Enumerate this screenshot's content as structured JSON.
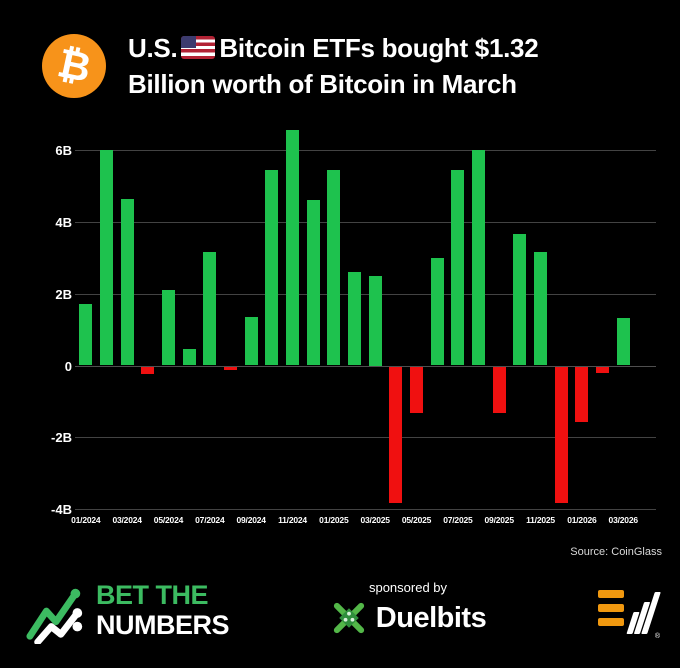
{
  "header": {
    "title_prefix": "U.S.",
    "title_suffix": "Bitcoin ETFs bought $1.32",
    "title_line2": "Billion worth of Bitcoin in March",
    "logo": "bitcoin-icon",
    "flag": "us-flag-icon",
    "accent_orange": "#f7931a"
  },
  "chart_data": {
    "type": "bar",
    "title": "U.S. Bitcoin ETF monthly net flows (USD)",
    "x": [
      "01/2024",
      "02/2024",
      "03/2024",
      "04/2024",
      "05/2024",
      "06/2024",
      "07/2024",
      "08/2024",
      "09/2024",
      "10/2024",
      "11/2024",
      "12/2024",
      "01/2025",
      "02/2025",
      "03/2025",
      "04/2025",
      "05/2025",
      "06/2025",
      "07/2025",
      "08/2025",
      "09/2025",
      "10/2025",
      "11/2025",
      "12/2025",
      "01/2026",
      "02/2026",
      "03/2026"
    ],
    "values": [
      1.7,
      6.0,
      4.65,
      -0.2,
      2.1,
      0.45,
      3.15,
      -0.1,
      1.35,
      5.45,
      6.55,
      4.6,
      5.45,
      2.6,
      2.5,
      -3.8,
      -1.3,
      3.0,
      5.45,
      6.0,
      -1.3,
      3.65,
      3.15,
      -3.8,
      -1.55,
      -0.18,
      1.32
    ],
    "unit": "B",
    "y_ticks": [
      {
        "label": "6B",
        "value": 6
      },
      {
        "label": "4B",
        "value": 4
      },
      {
        "label": "2B",
        "value": 2
      },
      {
        "label": "0",
        "value": 0
      },
      {
        "label": "-2B",
        "value": -2
      },
      {
        "label": "-4B",
        "value": -4
      }
    ],
    "x_tick_labels": [
      "01/2024",
      "03/2024",
      "05/2024",
      "07/2024",
      "09/2024",
      "11/2024",
      "01/2025",
      "03/2025",
      "05/2025",
      "07/2025",
      "09/2025",
      "11/2025",
      "01/2026",
      "03/2026"
    ],
    "ylim": [
      -4.6,
      6.9
    ],
    "grid": true,
    "legend": "none",
    "bar_color_positive": "#1ec24e",
    "bar_color_negative": "#f01010"
  },
  "source": "Source: CoinGlass",
  "footer": {
    "brand_line1": "BET THE",
    "brand_line2": "NUMBERS",
    "brand_icon": "trend-arrow-icon",
    "sponsored_label": "sponsored by",
    "sponsor_name": "Duelbits",
    "sponsor_icon": "crossed-swords-icon",
    "publisher_icon": "orange-bars-logo-icon",
    "brand_green": "#3cbb61"
  }
}
